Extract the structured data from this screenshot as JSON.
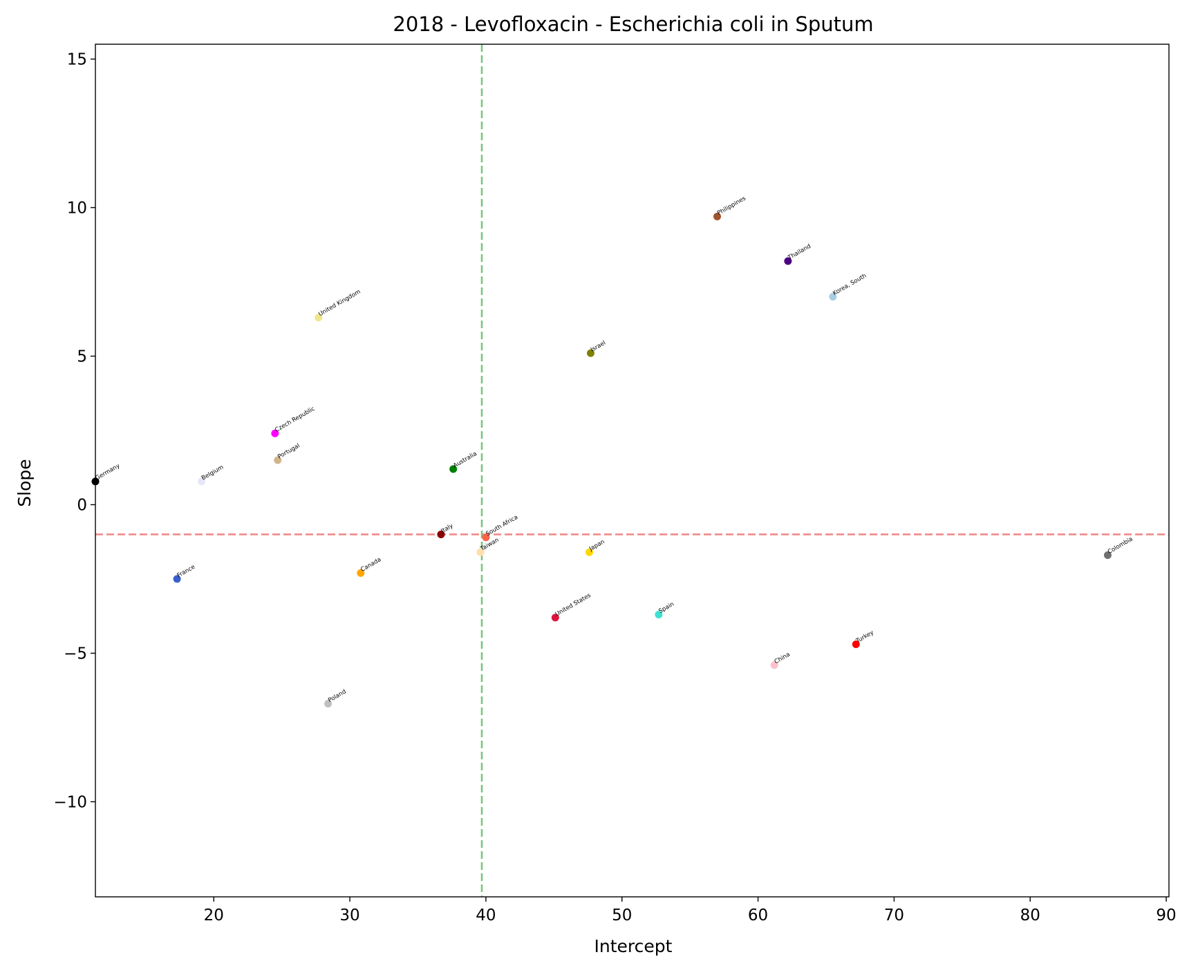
{
  "chart_data": {
    "type": "scatter",
    "title": "2018 - Levofloxacin - Escherichia coli in Sputum",
    "xlabel": "Intercept",
    "ylabel": "Slope",
    "xlim": [
      11.3,
      90.2
    ],
    "ylim": [
      -13.2,
      15.5
    ],
    "xticks": [
      20,
      30,
      40,
      50,
      60,
      70,
      80,
      90
    ],
    "yticks": [
      -10,
      -5,
      0,
      5,
      10,
      15
    ],
    "grid": false,
    "reference_lines": [
      {
        "orientation": "vertical",
        "value": 39.7,
        "color": "#7cc47c",
        "style": "dashed"
      },
      {
        "orientation": "horizontal",
        "value": -1.0,
        "color": "#f08a8a",
        "style": "dashed"
      }
    ],
    "points": [
      {
        "label": "Germany",
        "x": 11.3,
        "y": 0.78,
        "color": "#000000"
      },
      {
        "label": "Belgium",
        "x": 19.1,
        "y": 0.78,
        "color": "#e6e6fa"
      },
      {
        "label": "France",
        "x": 17.3,
        "y": -2.5,
        "color": "#3a5fcd"
      },
      {
        "label": "Czech Republic",
        "x": 24.5,
        "y": 2.4,
        "color": "#ff00ff"
      },
      {
        "label": "Portugal",
        "x": 24.7,
        "y": 1.5,
        "color": "#d2b48c"
      },
      {
        "label": "United Kingdom",
        "x": 27.7,
        "y": 6.3,
        "color": "#f0e68c"
      },
      {
        "label": "Canada",
        "x": 30.8,
        "y": -2.3,
        "color": "#ffa500"
      },
      {
        "label": "Poland",
        "x": 28.4,
        "y": -6.7,
        "color": "#c0c0c0"
      },
      {
        "label": "Italy",
        "x": 36.7,
        "y": -1.0,
        "color": "#8b0000"
      },
      {
        "label": "Australia",
        "x": 37.6,
        "y": 1.2,
        "color": "#008000"
      },
      {
        "label": "South Africa",
        "x": 40.0,
        "y": -1.1,
        "color": "#ff6347"
      },
      {
        "label": "Taiwan",
        "x": 39.6,
        "y": -1.6,
        "color": "#ffdead"
      },
      {
        "label": "United States",
        "x": 45.1,
        "y": -3.8,
        "color": "#dc143c"
      },
      {
        "label": "Japan",
        "x": 47.6,
        "y": -1.6,
        "color": "#ffd700"
      },
      {
        "label": "Israel",
        "x": 47.7,
        "y": 5.1,
        "color": "#808000"
      },
      {
        "label": "Spain",
        "x": 52.7,
        "y": -3.7,
        "color": "#40e0d0"
      },
      {
        "label": "Philippines",
        "x": 57.0,
        "y": 9.7,
        "color": "#a0522d"
      },
      {
        "label": "China",
        "x": 61.2,
        "y": -5.4,
        "color": "#ffc0cb"
      },
      {
        "label": "Thailand",
        "x": 62.2,
        "y": 8.2,
        "color": "#4b0082"
      },
      {
        "label": "Korea, South",
        "x": 65.5,
        "y": 7.0,
        "color": "#a6cee3"
      },
      {
        "label": "Turkey",
        "x": 67.2,
        "y": -4.7,
        "color": "#ff0000"
      },
      {
        "label": "Colombia",
        "x": 85.7,
        "y": -1.7,
        "color": "#707070"
      }
    ]
  }
}
